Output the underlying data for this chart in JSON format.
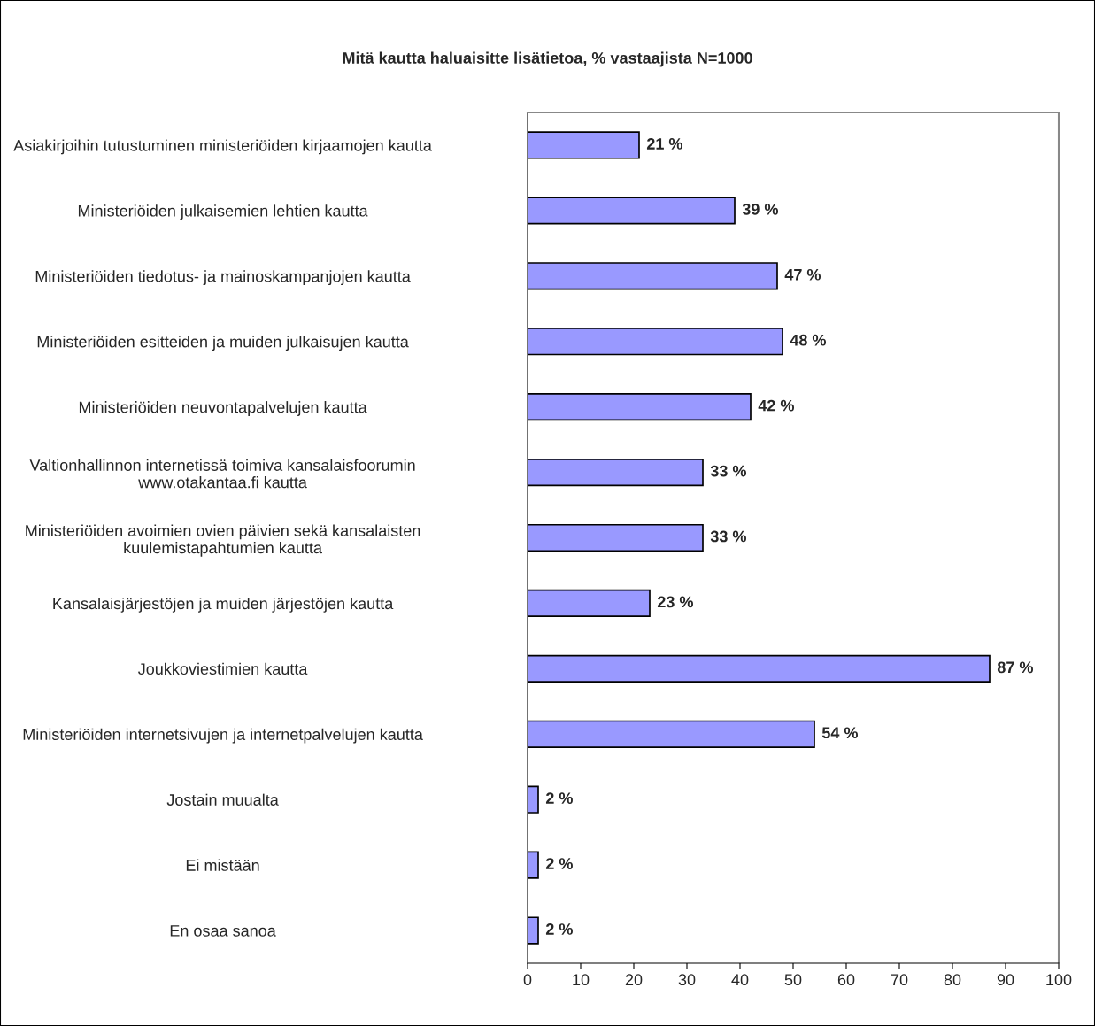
{
  "chart_data": {
    "type": "bar",
    "orientation": "horizontal",
    "title": "Mitä kautta haluaisitte lisätietoa, % vastaajista N=1000",
    "categories": [
      "Asiakirjoihin tutustuminen ministeriöiden kirjaamojen kautta",
      "Ministeriöiden julkaisemien lehtien kautta",
      "Ministeriöiden tiedotus- ja mainoskampanjojen kautta",
      "Ministeriöiden esitteiden ja muiden julkaisujen kautta",
      "Ministeriöiden neuvontapalvelujen kautta",
      "Valtionhallinnon internetissä toimiva kansalaisfoorumin\nwww.otakantaa.fi kautta",
      "Ministeriöiden avoimien ovien päivien sekä kansalaisten\nkuulemistapahtumien kautta",
      "Kansalaisjärjestöjen ja muiden järjestöjen kautta",
      "Joukkoviestimien kautta",
      "Ministeriöiden internetsivujen ja internetpalvelujen kautta",
      "Jostain muualta",
      "Ei mistään",
      "En osaa sanoa"
    ],
    "values": [
      21,
      39,
      47,
      48,
      42,
      33,
      33,
      23,
      87,
      54,
      2,
      2,
      2
    ],
    "value_labels": [
      "21 %",
      "39 %",
      "47 %",
      "48 %",
      "42 %",
      "33 %",
      "33 %",
      "23 %",
      "87 %",
      "54 %",
      "2 %",
      "2 %",
      "2 %"
    ],
    "color": "#9999ff",
    "xlim": [
      0,
      100
    ],
    "xticks": [
      0,
      10,
      20,
      30,
      40,
      50,
      60,
      70,
      80,
      90,
      100
    ],
    "grid": false,
    "legend": false
  }
}
